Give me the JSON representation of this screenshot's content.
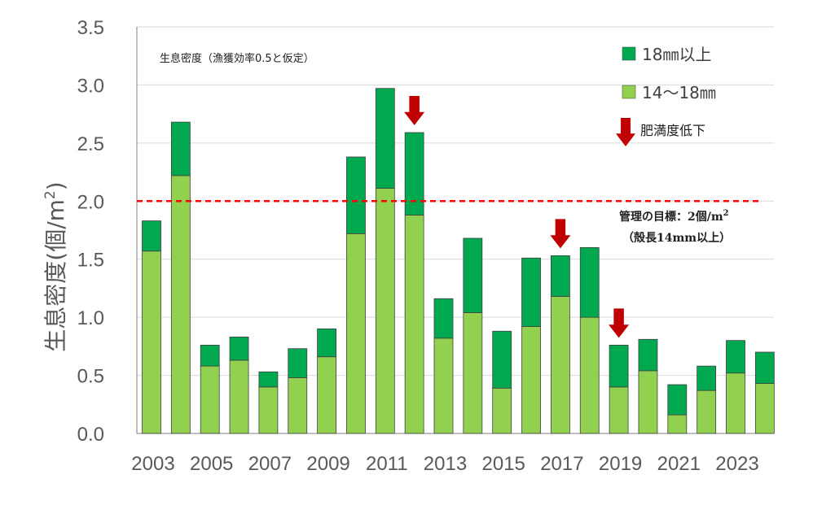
{
  "colors": {
    "upper": "#00a850",
    "lower": "#92d050",
    "grid": "#d9d9d9",
    "target_line": "#ff0000",
    "arrow": "#c00000"
  },
  "chart_data": {
    "type": "bar",
    "stacked": true,
    "title": "",
    "subtitle": "生息密度（漁獲効率0.5と仮定）",
    "ylabel_main": "生息密度",
    "ylabel_unit": "(個/m",
    "ylabel_sup": "2",
    "ylabel_close": ")",
    "ylim": [
      0,
      3.5
    ],
    "yticks": [
      "0.0",
      "0.5",
      "1.0",
      "1.5",
      "2.0",
      "2.5",
      "3.0",
      "3.5"
    ],
    "years": [
      2003,
      2004,
      2005,
      2006,
      2007,
      2008,
      2009,
      2010,
      2011,
      2012,
      2013,
      2014,
      2015,
      2016,
      2017,
      2018,
      2019,
      2020,
      2021,
      2022,
      2023,
      2024
    ],
    "xtick_labels": [
      "2003",
      "2005",
      "2007",
      "2009",
      "2011",
      "2013",
      "2015",
      "2017",
      "2019",
      "2021",
      "2023"
    ],
    "series": [
      {
        "name": "14～18mm",
        "values": [
          1.57,
          2.22,
          0.58,
          0.63,
          0.4,
          0.48,
          0.66,
          1.72,
          2.11,
          1.88,
          0.82,
          1.04,
          0.39,
          0.92,
          1.18,
          1.0,
          0.4,
          0.54,
          0.16,
          0.37,
          0.52,
          0.43
        ]
      },
      {
        "name": "18mm以上",
        "values": [
          0.26,
          0.46,
          0.18,
          0.2,
          0.13,
          0.25,
          0.24,
          0.66,
          0.86,
          0.71,
          0.34,
          0.64,
          0.49,
          0.59,
          0.35,
          0.6,
          0.36,
          0.27,
          0.26,
          0.21,
          0.28,
          0.27
        ]
      }
    ],
    "legend": {
      "upper_label": "18㎜以上",
      "lower_label": "14～18㎜",
      "arrow_label": "肥満度低下"
    },
    "target": {
      "value": 2.0,
      "label_line1": "管理の目標：2個/m",
      "label_sup": "2",
      "label_line2": "（殻長14mm以上）"
    },
    "arrows_years": [
      2012,
      2017,
      2019
    ]
  }
}
